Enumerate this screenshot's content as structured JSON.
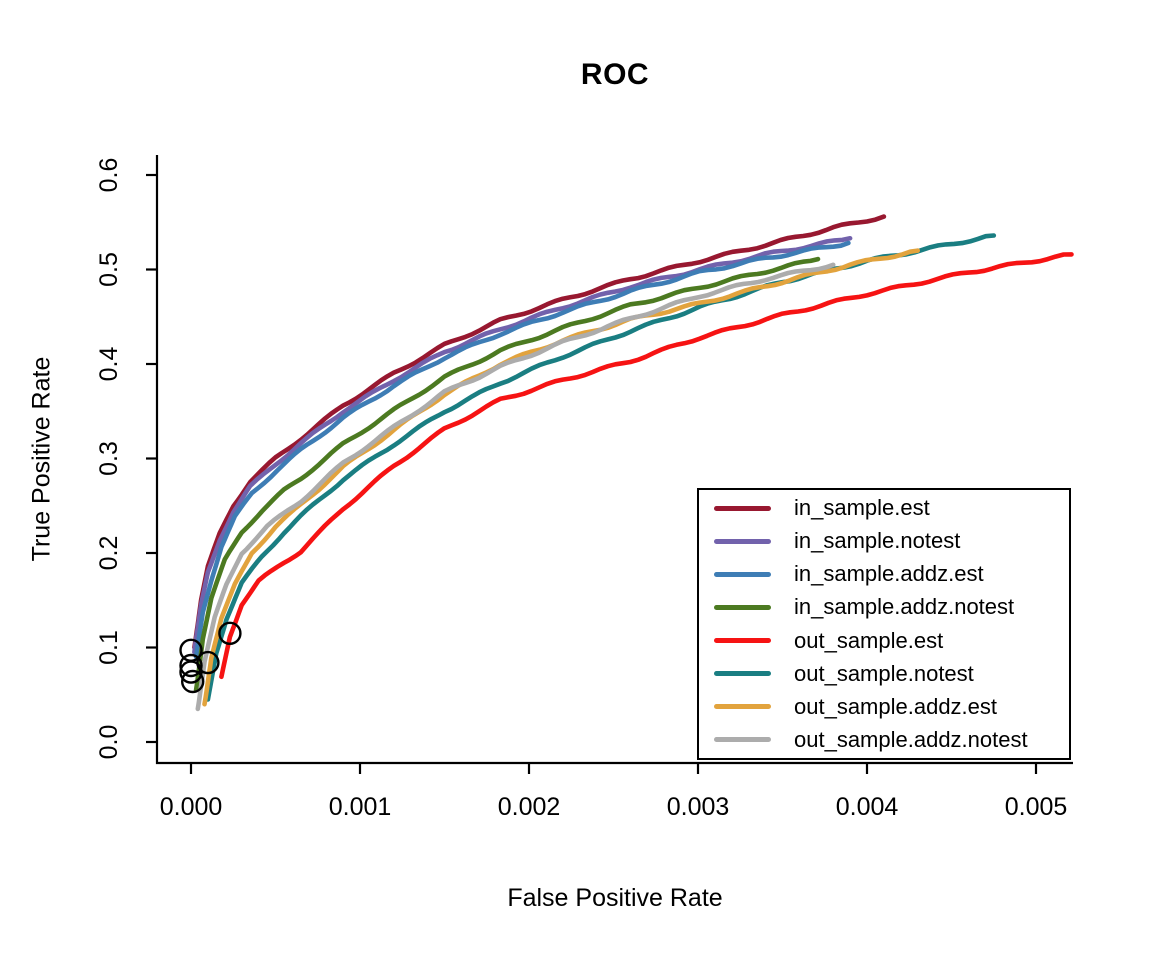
{
  "page": {
    "background": "#FFFFFF"
  },
  "chart_data": {
    "type": "line",
    "title": "ROC",
    "xlabel": "False Positive Rate",
    "ylabel": "True Positive Rate",
    "grid": false,
    "xlim": [
      -0.0002,
      0.0054
    ],
    "ylim": [
      -0.02,
      0.63
    ],
    "x_ticks": {
      "labels": [
        "0.000",
        "0.001",
        "0.002",
        "0.003",
        "0.004",
        "0.005"
      ],
      "values": [
        0.0,
        0.001,
        0.002,
        0.003,
        0.004,
        0.005
      ]
    },
    "y_ticks": {
      "labels": [
        "0.0",
        "0.1",
        "0.2",
        "0.3",
        "0.4",
        "0.5",
        "0.6"
      ],
      "values": [
        0.0,
        0.1,
        0.2,
        0.3,
        0.4,
        0.5,
        0.6
      ]
    },
    "legend": {
      "position": "inside-bottom-right",
      "border": true
    },
    "axis_color": "#000000",
    "series": [
      {
        "name": "in_sample.est",
        "color": "#981830",
        "x": [
          2e-05,
          6e-05,
          0.0001,
          0.00017,
          0.00025,
          0.00035,
          0.0005,
          0.00065,
          0.0009,
          0.0012,
          0.0015,
          0.00183,
          0.0022,
          0.0026,
          0.00301,
          0.0034,
          0.0038,
          0.0041
        ],
        "y": [
          0.1,
          0.15,
          0.185,
          0.22,
          0.25,
          0.276,
          0.3,
          0.321,
          0.356,
          0.39,
          0.42,
          0.446,
          0.468,
          0.49,
          0.509,
          0.526,
          0.544,
          0.556
        ]
      },
      {
        "name": "in_sample.notest",
        "color": "#7262AC",
        "x": [
          2e-05,
          6e-05,
          0.0001,
          0.00017,
          0.00025,
          0.00035,
          0.0005,
          0.00065,
          0.0009,
          0.0012,
          0.0015,
          0.00183,
          0.0022,
          0.0026,
          0.00301,
          0.0034,
          0.0039
        ],
        "y": [
          0.095,
          0.144,
          0.179,
          0.214,
          0.244,
          0.27,
          0.294,
          0.316,
          0.35,
          0.383,
          0.413,
          0.437,
          0.46,
          0.482,
          0.5,
          0.516,
          0.533
        ]
      },
      {
        "name": "in_sample.addz.est",
        "color": "#3E7DB5",
        "x": [
          3e-05,
          7e-05,
          0.00012,
          0.00018,
          0.00026,
          0.00036,
          0.00051,
          0.00065,
          0.0009,
          0.0012,
          0.0015,
          0.00183,
          0.0022,
          0.0026,
          0.00301,
          0.0034,
          0.00389
        ],
        "y": [
          0.09,
          0.138,
          0.172,
          0.207,
          0.238,
          0.263,
          0.288,
          0.309,
          0.343,
          0.377,
          0.407,
          0.432,
          0.455,
          0.477,
          0.497,
          0.512,
          0.528
        ]
      },
      {
        "name": "in_sample.addz.notest",
        "color": "#4C7A21",
        "x": [
          3e-05,
          7e-05,
          0.00012,
          0.0002,
          0.0003,
          0.00042,
          0.00055,
          0.00065,
          0.0009,
          0.0012,
          0.0015,
          0.00183,
          0.0022,
          0.0026,
          0.00301,
          0.0034,
          0.00371
        ],
        "y": [
          0.055,
          0.11,
          0.152,
          0.192,
          0.222,
          0.245,
          0.266,
          0.279,
          0.315,
          0.351,
          0.386,
          0.414,
          0.438,
          0.462,
          0.481,
          0.498,
          0.511
        ]
      },
      {
        "name": "out_sample.est",
        "color": "#F61313",
        "x": [
          0.00018,
          0.00023,
          0.0003,
          0.0004,
          0.00055,
          0.00065,
          0.0009,
          0.0012,
          0.0015,
          0.00183,
          0.0022,
          0.0026,
          0.00301,
          0.0035,
          0.004,
          0.0046,
          0.00521
        ],
        "y": [
          0.069,
          0.112,
          0.146,
          0.17,
          0.19,
          0.202,
          0.247,
          0.292,
          0.331,
          0.362,
          0.383,
          0.403,
          0.428,
          0.452,
          0.474,
          0.497,
          0.516
        ]
      },
      {
        "name": "out_sample.notest",
        "color": "#1A7E82",
        "x": [
          0.0001,
          0.00015,
          0.00021,
          0.0003,
          0.00042,
          0.00055,
          0.00065,
          0.0009,
          0.0012,
          0.0015,
          0.00183,
          0.0022,
          0.0026,
          0.00301,
          0.0035,
          0.004,
          0.00475
        ],
        "y": [
          0.045,
          0.095,
          0.131,
          0.168,
          0.196,
          0.222,
          0.239,
          0.278,
          0.315,
          0.35,
          0.38,
          0.408,
          0.435,
          0.46,
          0.487,
          0.509,
          0.536
        ]
      },
      {
        "name": "out_sample.addz.est",
        "color": "#E2A33D",
        "x": [
          8e-05,
          0.00012,
          0.00018,
          0.00026,
          0.00036,
          0.0005,
          0.00065,
          0.0009,
          0.0012,
          0.0015,
          0.00183,
          0.0022,
          0.0026,
          0.00301,
          0.0035,
          0.0039,
          0.0043
        ],
        "y": [
          0.04,
          0.09,
          0.131,
          0.166,
          0.2,
          0.228,
          0.251,
          0.291,
          0.33,
          0.368,
          0.4,
          0.425,
          0.447,
          0.464,
          0.487,
          0.505,
          0.52
        ]
      },
      {
        "name": "out_sample.addz.notest",
        "color": "#ACACAC",
        "x": [
          4e-05,
          8e-05,
          0.00014,
          0.00021,
          0.0003,
          0.00045,
          0.00065,
          0.0009,
          0.0012,
          0.0015,
          0.00183,
          0.0022,
          0.0026,
          0.00301,
          0.0034,
          0.0038
        ],
        "y": [
          0.035,
          0.085,
          0.131,
          0.166,
          0.2,
          0.228,
          0.255,
          0.295,
          0.333,
          0.37,
          0.397,
          0.423,
          0.448,
          0.472,
          0.49,
          0.505
        ]
      }
    ],
    "markers": {
      "shape": "open-circle",
      "color": "#000000",
      "points": [
        [
          0.00023,
          0.115
        ],
        [
          0.0,
          0.097
        ],
        [
          0.0001,
          0.084
        ],
        [
          0.0,
          0.081
        ],
        [
          0.0,
          0.074
        ],
        [
          1e-05,
          0.064
        ]
      ]
    }
  }
}
